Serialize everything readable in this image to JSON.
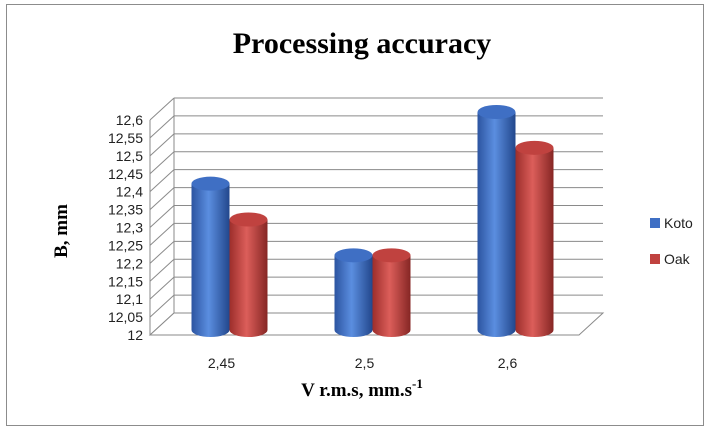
{
  "chart_data": {
    "type": "bar",
    "title": "Processing accuracy",
    "xlabel": "V r.m.s, mm.s",
    "xlabel_superscript": "-1",
    "ylabel": "B, mm",
    "categories": [
      "2,45",
      "2,5",
      "2,6"
    ],
    "series": [
      {
        "name": "Koto",
        "values": [
          12.4,
          12.2,
          12.6
        ],
        "color": "#3f6fc4"
      },
      {
        "name": "Oak",
        "values": [
          12.3,
          12.2,
          12.5
        ],
        "color": "#c0423f"
      }
    ],
    "ylim": [
      12,
      12.6
    ],
    "yticks": [
      "12",
      "12,05",
      "12,1",
      "12,15",
      "12,2",
      "12,25",
      "12,3",
      "12,35",
      "12,4",
      "12,45",
      "12,5",
      "12,55",
      "12,6"
    ],
    "grid": true,
    "legend_position": "right",
    "style": "3d-cylinder"
  }
}
